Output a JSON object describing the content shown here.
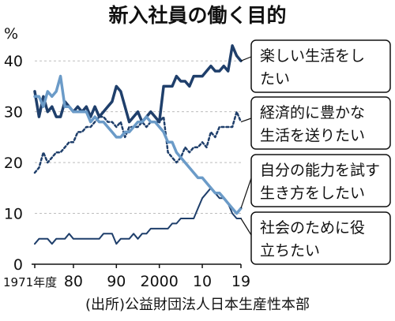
{
  "chart_data": {
    "type": "line",
    "title": "新入社員の働く目的",
    "unit_label": "%",
    "ylim": [
      0,
      45
    ],
    "yticks": [
      0,
      10,
      20,
      30,
      40
    ],
    "xlim": [
      1971,
      2019
    ],
    "xtick_labels": [
      {
        "x": 1971,
        "label": "1971年度"
      },
      {
        "x": 1980,
        "label": "80"
      },
      {
        "x": 1990,
        "label": "90"
      },
      {
        "x": 2000,
        "label": "2000"
      },
      {
        "x": 2010,
        "label": "10"
      },
      {
        "x": 2019,
        "label": "19"
      }
    ],
    "grid": true,
    "x": [
      1971,
      1972,
      1973,
      1974,
      1975,
      1976,
      1977,
      1978,
      1979,
      1980,
      1981,
      1982,
      1983,
      1984,
      1985,
      1986,
      1987,
      1988,
      1989,
      1990,
      1991,
      1992,
      1993,
      1994,
      1995,
      1996,
      1997,
      1998,
      1999,
      2000,
      2001,
      2002,
      2003,
      2004,
      2005,
      2006,
      2007,
      2008,
      2009,
      2010,
      2011,
      2012,
      2013,
      2014,
      2015,
      2016,
      2017,
      2018,
      2019
    ],
    "series": [
      {
        "name": "楽しい生活をしたい",
        "color": "#1f3f6b",
        "dash": "solid",
        "values": [
          34,
          29,
          33,
          30,
          31,
          29,
          29,
          32,
          31,
          30,
          31,
          30,
          31,
          29,
          31,
          29,
          30,
          31,
          32,
          35,
          34,
          31,
          28,
          29,
          30,
          28,
          29,
          30,
          29,
          28,
          35,
          35,
          35,
          37,
          36,
          36,
          35,
          37,
          37,
          37,
          38,
          39,
          38,
          38,
          39,
          38,
          43,
          41,
          40
        ]
      },
      {
        "name": "経済的に豊かな生活を送りたい",
        "color": "#1f3f6b",
        "dash": "dotted",
        "values": [
          18,
          19,
          22,
          20,
          21,
          22,
          22,
          23,
          24,
          24,
          26,
          26,
          27,
          27,
          28,
          29,
          29,
          28,
          28,
          27,
          28,
          25,
          27,
          27,
          27,
          28,
          27,
          28,
          28,
          28,
          29,
          22,
          21,
          20,
          21,
          23,
          22,
          23,
          23,
          24,
          23,
          26,
          25,
          27,
          27,
          27,
          27,
          30,
          28
        ]
      },
      {
        "name": "自分の能力を試す生き方をしたい",
        "color": "#6b9bc8",
        "dash": "solid",
        "values": [
          33,
          33,
          31,
          34,
          33,
          34,
          37,
          31,
          31,
          30,
          30,
          30,
          30,
          28,
          29,
          28,
          28,
          27,
          26,
          25,
          25,
          26,
          26,
          27,
          28,
          28,
          29,
          28,
          28,
          27,
          26,
          24,
          24,
          22,
          21,
          20,
          19,
          18,
          17,
          17,
          16,
          15,
          14,
          14,
          13,
          12,
          11,
          10,
          11
        ]
      },
      {
        "name": "社会のために役立ちたい",
        "color": "#1f3f6b",
        "dash": "solid",
        "thin": true,
        "values": [
          4,
          5,
          5,
          5,
          4,
          5,
          5,
          5,
          6,
          5,
          5,
          5,
          5,
          5,
          5,
          5,
          6,
          6,
          6,
          4,
          5,
          5,
          5,
          6,
          5,
          6,
          6,
          7,
          7,
          7,
          7,
          7,
          8,
          8,
          9,
          9,
          9,
          9,
          11,
          13,
          14,
          15,
          14,
          13,
          13,
          12,
          10,
          9,
          9
        ]
      }
    ],
    "labels": [
      {
        "series": 0,
        "lines": [
          "楽しい生活をし",
          "たい"
        ]
      },
      {
        "series": 1,
        "lines": [
          "経済的に豊かな",
          "生活を送りたい"
        ]
      },
      {
        "series": 2,
        "lines": [
          "自分の能力を試す",
          "生き方をしたい"
        ]
      },
      {
        "series": 3,
        "lines": [
          "社会のために役",
          "立ちたい"
        ]
      }
    ],
    "source": "(出所)公益財団法人日本生産性本部"
  }
}
